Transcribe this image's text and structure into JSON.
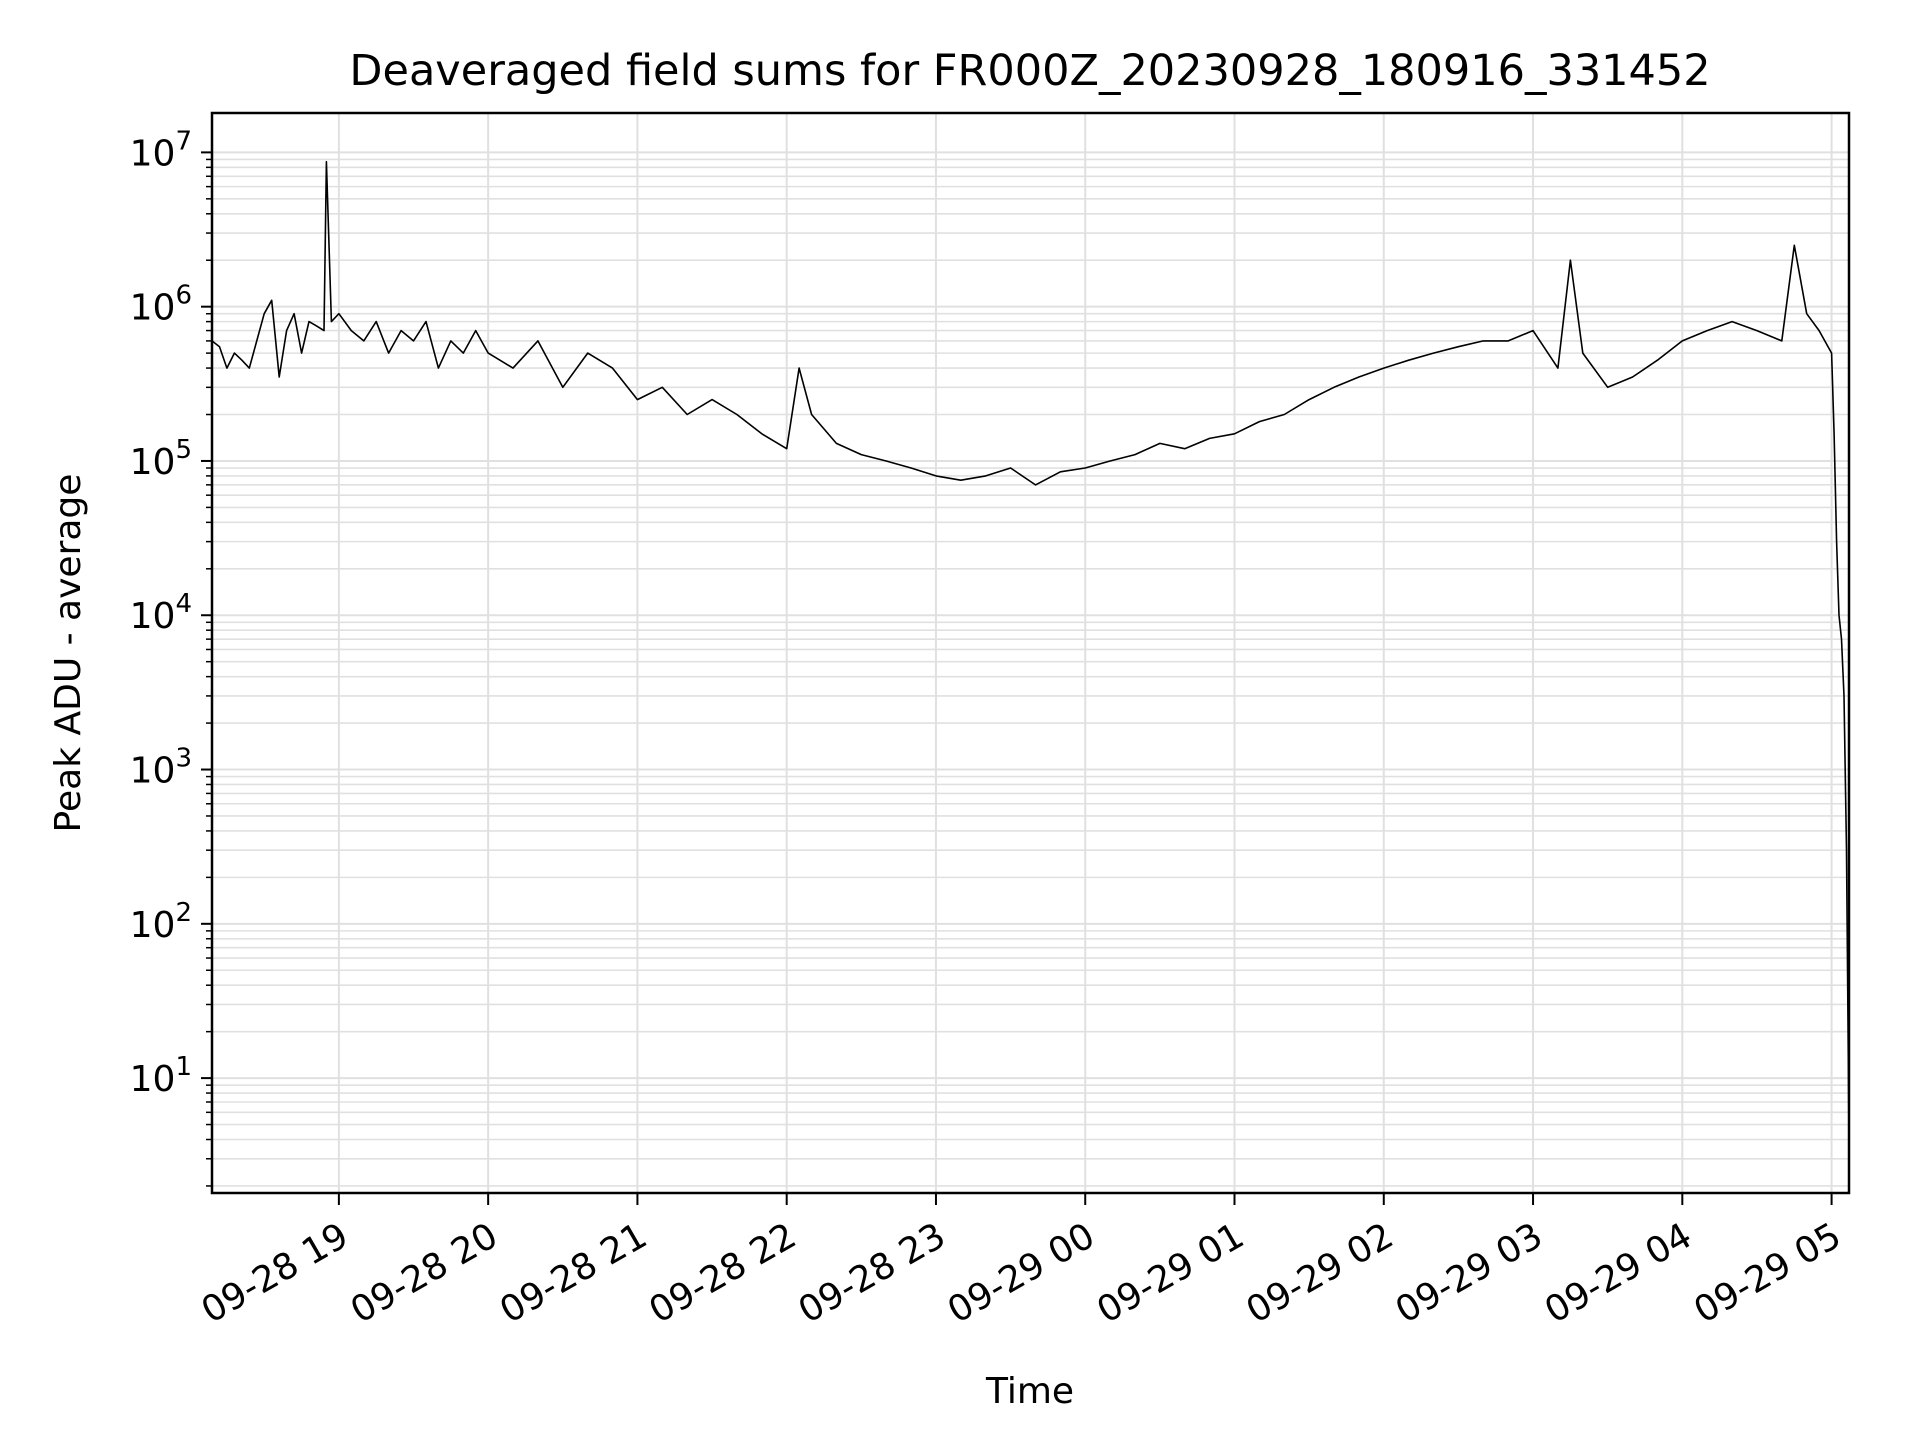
{
  "chart_data": {
    "type": "line",
    "title": "Deaveraged field sums for FR000Z_20230928_180916_331452",
    "xlabel": "Time",
    "ylabel": "Peak ADU - average",
    "yscale": "log",
    "ylim": [
      1.8,
      18000000
    ],
    "xlim": [
      "09-28 18:09",
      "09-29 05:07"
    ],
    "grid": true,
    "line_color": "#000000",
    "grid_color": "#e0e0e0",
    "x_ticks": [
      "09-28 19",
      "09-28 20",
      "09-28 21",
      "09-28 22",
      "09-28 23",
      "09-29 00",
      "09-29 01",
      "09-29 02",
      "09-29 03",
      "09-29 04",
      "09-29 05"
    ],
    "y_ticks": [
      {
        "value": 10,
        "base": "10",
        "exp": "1"
      },
      {
        "value": 100,
        "base": "10",
        "exp": "2"
      },
      {
        "value": 1000,
        "base": "10",
        "exp": "3"
      },
      {
        "value": 10000,
        "base": "10",
        "exp": "4"
      },
      {
        "value": 100000,
        "base": "10",
        "exp": "5"
      },
      {
        "value": 1000000,
        "base": "10",
        "exp": "6"
      },
      {
        "value": 10000000,
        "base": "10",
        "exp": "7"
      }
    ],
    "series": [
      {
        "x": [
          "09-28 18:09",
          "09-28 18:12",
          "09-28 18:15",
          "09-28 18:18",
          "09-28 18:21",
          "09-28 18:24",
          "09-28 18:30",
          "09-28 18:33",
          "09-28 18:36",
          "09-28 18:39",
          "09-28 18:42",
          "09-28 18:45",
          "09-28 18:48",
          "09-28 18:51",
          "09-28 18:54",
          "09-28 18:55",
          "09-28 18:57",
          "09-28 19:00",
          "09-28 19:05",
          "09-28 19:10",
          "09-28 19:15",
          "09-28 19:20",
          "09-28 19:25",
          "09-28 19:30",
          "09-28 19:35",
          "09-28 19:40",
          "09-28 19:45",
          "09-28 19:50",
          "09-28 19:55",
          "09-28 20:00",
          "09-28 20:10",
          "09-28 20:20",
          "09-28 20:30",
          "09-28 20:40",
          "09-28 20:50",
          "09-28 21:00",
          "09-28 21:10",
          "09-28 21:20",
          "09-28 21:30",
          "09-28 21:40",
          "09-28 21:50",
          "09-28 22:00",
          "09-28 22:05",
          "09-28 22:10",
          "09-28 22:20",
          "09-28 22:30",
          "09-28 22:40",
          "09-28 22:50",
          "09-28 23:00",
          "09-28 23:10",
          "09-28 23:20",
          "09-28 23:30",
          "09-28 23:40",
          "09-28 23:50",
          "09-29 00:00",
          "09-29 00:10",
          "09-29 00:20",
          "09-29 00:30",
          "09-29 00:40",
          "09-29 00:50",
          "09-29 01:00",
          "09-29 01:10",
          "09-29 01:20",
          "09-29 01:30",
          "09-29 01:40",
          "09-29 01:50",
          "09-29 02:00",
          "09-29 02:10",
          "09-29 02:20",
          "09-29 02:30",
          "09-29 02:40",
          "09-29 02:50",
          "09-29 03:00",
          "09-29 03:10",
          "09-29 03:15",
          "09-29 03:20",
          "09-29 03:30",
          "09-29 03:40",
          "09-29 03:50",
          "09-29 04:00",
          "09-29 04:10",
          "09-29 04:20",
          "09-29 04:30",
          "09-29 04:40",
          "09-29 04:45",
          "09-29 04:50",
          "09-29 04:55",
          "09-29 05:00",
          "09-29 05:01",
          "09-29 05:02",
          "09-29 05:03",
          "09-29 05:04",
          "09-29 05:05",
          "09-29 05:06",
          "09-29 05:07"
        ],
        "y": [
          600000,
          550000,
          400000,
          500000,
          450000,
          400000,
          900000,
          1100000,
          350000,
          700000,
          900000,
          500000,
          800000,
          750000,
          700000,
          8700000,
          800000,
          900000,
          700000,
          600000,
          800000,
          500000,
          700000,
          600000,
          800000,
          400000,
          600000,
          500000,
          700000,
          500000,
          400000,
          600000,
          300000,
          500000,
          400000,
          250000,
          300000,
          200000,
          250000,
          200000,
          150000,
          120000,
          400000,
          200000,
          130000,
          110000,
          100000,
          90000,
          80000,
          75000,
          80000,
          90000,
          70000,
          85000,
          90000,
          100000,
          110000,
          130000,
          120000,
          140000,
          150000,
          180000,
          200000,
          250000,
          300000,
          350000,
          400000,
          450000,
          500000,
          550000,
          600000,
          600000,
          700000,
          400000,
          2000000,
          500000,
          300000,
          350000,
          450000,
          600000,
          700000,
          800000,
          700000,
          600000,
          2500000,
          900000,
          700000,
          500000,
          150000,
          30000,
          10000,
          7000,
          3000,
          300,
          4
        ]
      }
    ]
  }
}
